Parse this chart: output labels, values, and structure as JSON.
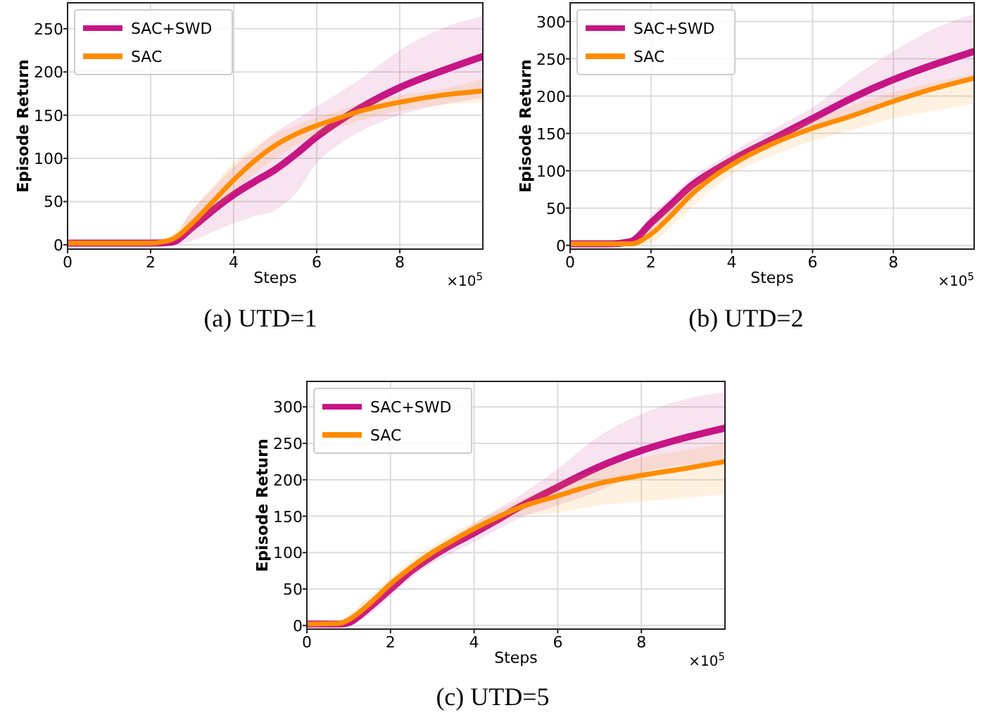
{
  "chart_data": [
    {
      "type": "line",
      "title": "(a) UTD=1",
      "xlabel": "Steps",
      "ylabel": "Episode Return",
      "annotations": [
        "×10$^{5}$"
      ],
      "xlim": [
        0,
        10
      ],
      "xticks": [
        0,
        2,
        4,
        6,
        8
      ],
      "ylim": [
        -5,
        280
      ],
      "yticks": [
        0,
        50,
        100,
        150,
        200,
        250
      ],
      "grid": true,
      "legend": "top left",
      "series": [
        {
          "name": "SAC+SWD",
          "color": "#c71585",
          "x": [
            0,
            1,
            2,
            2.5,
            3,
            3.5,
            4,
            4.5,
            5,
            5.5,
            6,
            6.5,
            7,
            8,
            9,
            10
          ],
          "values": [
            2,
            2,
            2,
            3,
            20,
            40,
            58,
            73,
            87,
            105,
            125,
            142,
            157,
            182,
            201,
            218
          ],
          "lower": [
            0,
            0,
            0,
            0,
            5,
            15,
            25,
            33,
            40,
            60,
            95,
            115,
            130,
            150,
            162,
            170
          ],
          "upper": [
            4,
            4,
            4,
            6,
            40,
            65,
            90,
            110,
            130,
            145,
            160,
            175,
            190,
            225,
            250,
            265
          ]
        },
        {
          "name": "SAC",
          "color": "#ff8c00",
          "x": [
            0,
            1,
            2,
            2.5,
            3,
            3.5,
            4,
            4.5,
            5,
            5.5,
            6,
            6.5,
            7,
            8,
            9,
            10
          ],
          "values": [
            2,
            2,
            2,
            6,
            25,
            50,
            75,
            97,
            115,
            128,
            138,
            146,
            154,
            165,
            173,
            178
          ],
          "lower": [
            0,
            0,
            0,
            2,
            15,
            38,
            60,
            82,
            100,
            115,
            125,
            135,
            143,
            155,
            162,
            165
          ],
          "upper": [
            4,
            4,
            4,
            12,
            40,
            68,
            95,
            113,
            128,
            138,
            147,
            155,
            163,
            173,
            180,
            192
          ]
        }
      ]
    },
    {
      "type": "line",
      "title": "(b) UTD=2",
      "xlabel": "Steps",
      "ylabel": "Episode Return",
      "annotations": [
        "×10$^{5}$"
      ],
      "xlim": [
        0,
        10
      ],
      "xticks": [
        0,
        2,
        4,
        6,
        8
      ],
      "ylim": [
        -5,
        325
      ],
      "yticks": [
        0,
        50,
        100,
        150,
        200,
        250,
        300
      ],
      "grid": true,
      "legend": "top left",
      "series": [
        {
          "name": "SAC+SWD",
          "color": "#c71585",
          "x": [
            0,
            1,
            1.5,
            2,
            2.5,
            3,
            3.5,
            4,
            5,
            6,
            7,
            8,
            9,
            10
          ],
          "values": [
            2,
            2,
            5,
            30,
            55,
            80,
            98,
            114,
            142,
            170,
            198,
            222,
            242,
            260
          ],
          "lower": [
            0,
            0,
            2,
            20,
            45,
            70,
            88,
            105,
            132,
            155,
            175,
            195,
            210,
            225
          ],
          "upper": [
            4,
            4,
            8,
            40,
            65,
            90,
            108,
            125,
            155,
            185,
            225,
            260,
            290,
            310
          ]
        },
        {
          "name": "SAC",
          "color": "#ff8c00",
          "x": [
            0,
            1,
            1.5,
            2,
            2.5,
            3,
            3.5,
            4,
            5,
            6,
            7,
            8,
            9,
            10
          ],
          "values": [
            2,
            2,
            2,
            15,
            40,
            68,
            90,
            108,
            136,
            157,
            174,
            193,
            210,
            224
          ],
          "lower": [
            0,
            0,
            0,
            3,
            25,
            50,
            75,
            95,
            120,
            140,
            155,
            170,
            180,
            190
          ],
          "upper": [
            4,
            4,
            6,
            25,
            55,
            82,
            102,
            120,
            145,
            168,
            188,
            205,
            218,
            230
          ]
        }
      ]
    },
    {
      "type": "line",
      "title": "(c) UTD=5",
      "xlabel": "Steps",
      "ylabel": "Episode Return",
      "annotations": [
        "×10$^{5}$"
      ],
      "xlim": [
        0,
        10
      ],
      "xticks": [
        0,
        2,
        4,
        6,
        8
      ],
      "ylim": [
        -5,
        335
      ],
      "yticks": [
        0,
        50,
        100,
        150,
        200,
        250,
        300
      ],
      "grid": true,
      "legend": "top left",
      "series": [
        {
          "name": "SAC+SWD",
          "color": "#c71585",
          "x": [
            0,
            0.8,
            1,
            1.5,
            2,
            2.5,
            3,
            3.5,
            4,
            4.5,
            5,
            6,
            7,
            8,
            9,
            10
          ],
          "values": [
            2,
            2,
            4,
            25,
            50,
            75,
            95,
            112,
            127,
            143,
            160,
            190,
            218,
            240,
            257,
            271
          ],
          "lower": [
            0,
            0,
            2,
            15,
            40,
            65,
            85,
            100,
            115,
            130,
            145,
            165,
            185,
            210,
            220,
            225
          ],
          "upper": [
            4,
            4,
            8,
            35,
            60,
            85,
            105,
            122,
            140,
            158,
            175,
            215,
            260,
            290,
            310,
            320
          ]
        },
        {
          "name": "SAC",
          "color": "#ff8c00",
          "x": [
            0,
            0.8,
            1,
            1.5,
            2,
            2.5,
            3,
            3.5,
            4,
            4.5,
            5,
            6,
            7,
            8,
            9,
            10
          ],
          "values": [
            2,
            3,
            8,
            30,
            57,
            80,
            100,
            117,
            133,
            147,
            160,
            178,
            195,
            206,
            215,
            225
          ],
          "lower": [
            0,
            0,
            3,
            20,
            45,
            70,
            90,
            108,
            125,
            138,
            150,
            155,
            165,
            170,
            175,
            180
          ],
          "upper": [
            4,
            6,
            15,
            40,
            65,
            90,
            110,
            127,
            142,
            156,
            170,
            195,
            215,
            230,
            240,
            250
          ]
        }
      ]
    }
  ]
}
